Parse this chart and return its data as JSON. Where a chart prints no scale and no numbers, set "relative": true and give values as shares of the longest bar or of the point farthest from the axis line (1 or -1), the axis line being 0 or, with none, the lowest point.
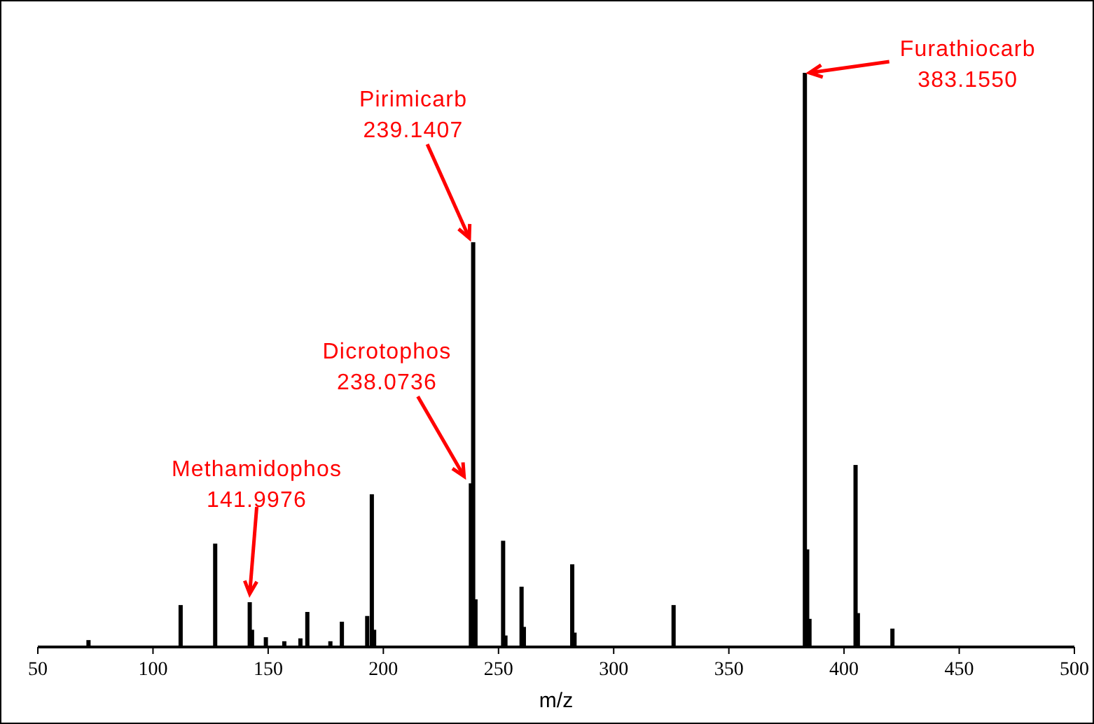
{
  "chart_data": {
    "type": "bar",
    "relative": true,
    "xlabel": "m/z",
    "xlim": [
      50,
      500
    ],
    "xticks": [
      50,
      100,
      150,
      200,
      250,
      300,
      350,
      400,
      450,
      500
    ],
    "color": "#000000",
    "x": [
      72,
      112,
      127,
      142,
      143,
      149,
      157,
      164,
      167,
      177,
      182,
      193,
      195,
      196,
      238,
      239,
      240,
      252,
      253,
      260,
      261,
      282,
      283,
      326,
      383,
      384,
      385,
      405,
      406,
      421
    ],
    "values": [
      0.012,
      0.073,
      0.18,
      0.078,
      0.03,
      0.017,
      0.01,
      0.015,
      0.061,
      0.01,
      0.044,
      0.054,
      0.266,
      0.03,
      0.285,
      0.705,
      0.083,
      0.185,
      0.02,
      0.105,
      0.035,
      0.144,
      0.025,
      0.073,
      1,
      0.17,
      0.049,
      0.317,
      0.059,
      0.032
    ],
    "annotations": [
      {
        "text": "Methamidophos\n141.9976",
        "x": 141.9976,
        "y": 0.078
      },
      {
        "text": "Dicrotophos\n238.0736",
        "x": 238.0736,
        "y": 0.285
      },
      {
        "text": "Pirimicarb\n239.1407",
        "x": 239.1407,
        "y": 0.705
      },
      {
        "text": "Furathiocarb\n383.1550",
        "x": 383.155,
        "y": 1
      }
    ]
  }
}
